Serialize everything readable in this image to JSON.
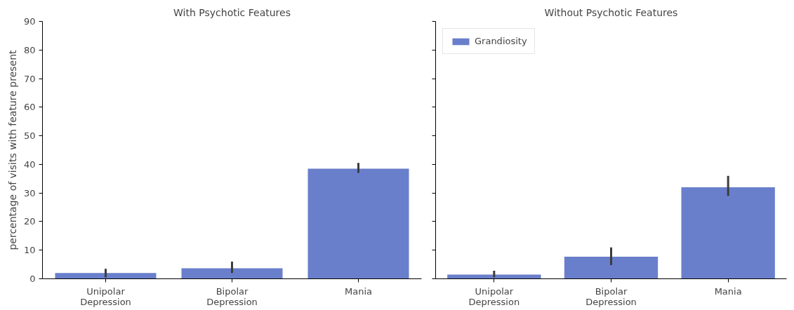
{
  "chart_data": [
    {
      "type": "bar",
      "title": "With Psychotic Features",
      "ylabel": "percentage of visits with feature present",
      "categories": [
        "Unipolar\nDepression",
        "Bipolar\nDepression",
        "Mania"
      ],
      "series": [
        {
          "color": "#6a7fcb",
          "values": [
            2,
            3.7,
            38.5
          ],
          "errors": [
            [
              0.5,
              3.5
            ],
            [
              2,
              6
            ],
            [
              37,
              40.5
            ]
          ]
        }
      ],
      "ylim": [
        0,
        90
      ],
      "yticks": [
        0,
        10,
        20,
        30,
        40,
        50,
        60,
        70,
        80,
        90
      ],
      "grid": false,
      "legend": false
    },
    {
      "type": "bar",
      "title": "Without Psychotic Features",
      "categories": [
        "Unipolar\nDepression",
        "Bipolar\nDepression",
        "Mania"
      ],
      "series": [
        {
          "name": "Grandiosity",
          "color": "#6a7fcb",
          "values": [
            1.5,
            7.7,
            32
          ],
          "errors": [
            [
              0.5,
              2.8
            ],
            [
              4.8,
              11
            ],
            [
              29,
              36
            ]
          ]
        }
      ],
      "ylim": [
        0,
        90
      ],
      "yticks": [
        0,
        10,
        20,
        30,
        40,
        50,
        60,
        70,
        80,
        90
      ],
      "grid": false,
      "legend": "top left",
      "tick_labels": "x"
    }
  ]
}
